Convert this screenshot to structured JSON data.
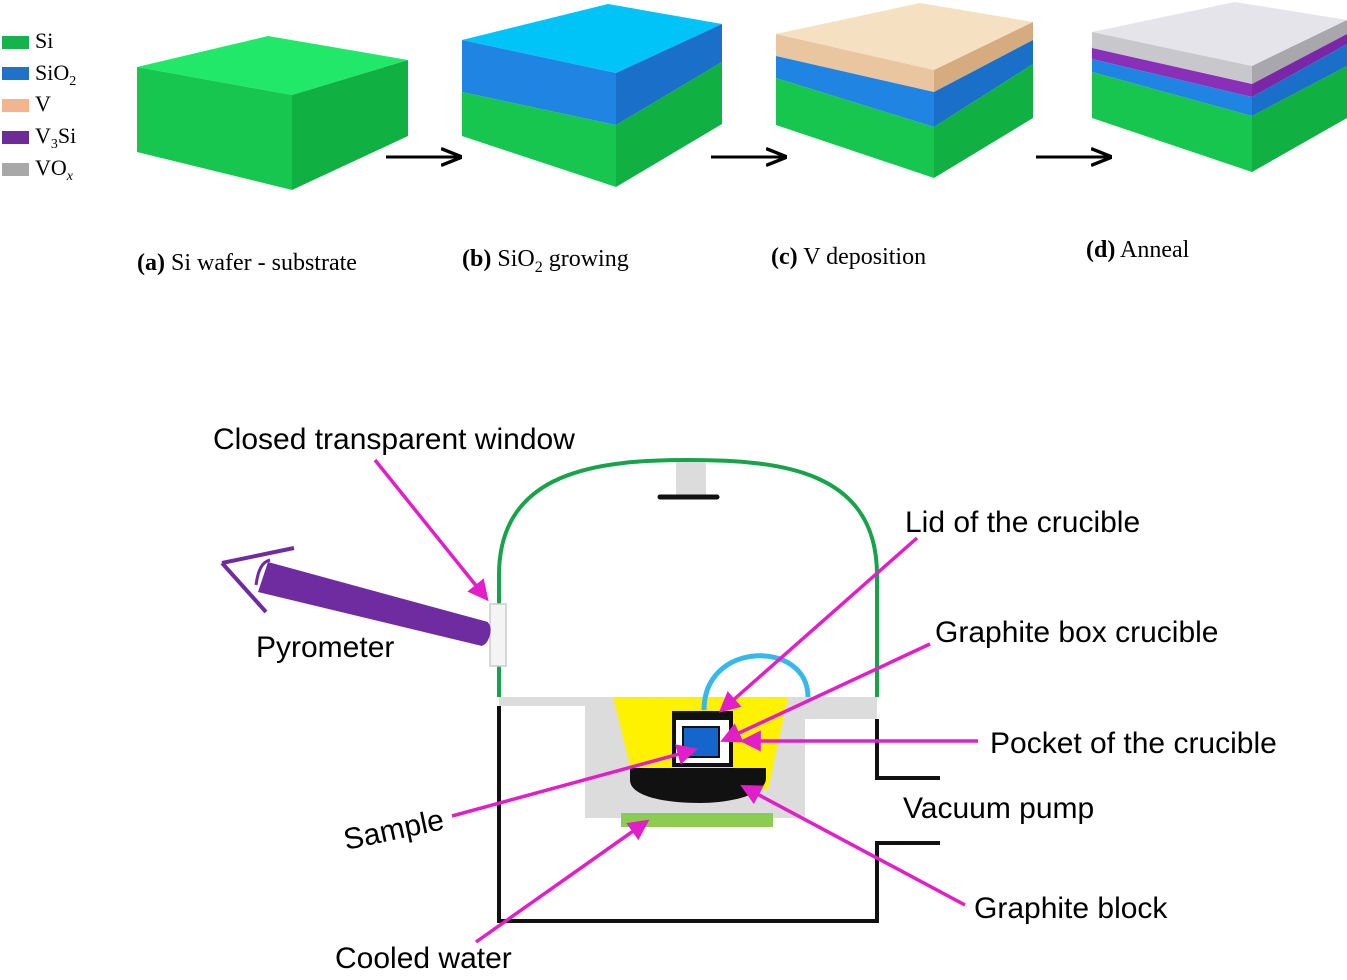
{
  "legend": {
    "items": [
      {
        "label": "Si",
        "sub": "",
        "italic": false,
        "color": "#13b54a"
      },
      {
        "label": "SiO",
        "sub": "2",
        "italic": false,
        "color": "#1e73c8"
      },
      {
        "label": "V",
        "sub": "",
        "italic": false,
        "color": "#f4b48c"
      },
      {
        "label": "V",
        "sub": "3",
        "suffix": "Si",
        "italic": false,
        "color": "#6e2a96"
      },
      {
        "label": "VO",
        "sub": "x",
        "italic": true,
        "color": "#a8a8a8"
      }
    ]
  },
  "steps": [
    {
      "tag": "(a)",
      "text": " Si wafer - substrate",
      "sub": "",
      "tail": ""
    },
    {
      "tag": "(b)",
      "text": " SiO",
      "sub": "2",
      "tail": " growing"
    },
    {
      "tag": "(c)",
      "text": " V deposition",
      "sub": "",
      "tail": ""
    },
    {
      "tag": "(d)",
      "text": " Anneal",
      "sub": "",
      "tail": ""
    }
  ],
  "colors": {
    "si_top": "#22e86a",
    "si_front": "#16c64f",
    "si_side": "#10b042",
    "sio2_top": "#00c4f8",
    "sio2_front": "#1f84e2",
    "sio2_side": "#1a70c8",
    "v_top": "#f6e0c2",
    "v_front": "#e9c6a0",
    "v_side": "#d6ab80",
    "v3si": "#8a30b8",
    "vox_top": "#e4e4ea",
    "vox_front": "#c8c8cc",
    "vox_side": "#a8a8ac",
    "chamber_green": "#16a34a",
    "magenta": "#e21ec8",
    "purple": "#6f2ca0",
    "yellow": "#fff200",
    "light_gray": "#dcdcdc",
    "cyan": "#35b8ea",
    "sample_blue": "#1466cc",
    "cooled_green": "#8ccc50"
  },
  "chamber": {
    "labels": {
      "window": "Closed transparent window",
      "lid": "Lid of the crucible",
      "box": "Graphite box crucible",
      "pocket": "Pocket of the crucible",
      "pump": "Vacuum pump",
      "pyrometer": "Pyrometer",
      "sample": "Sample",
      "block": "Graphite block",
      "cooled": "Cooled water"
    }
  }
}
